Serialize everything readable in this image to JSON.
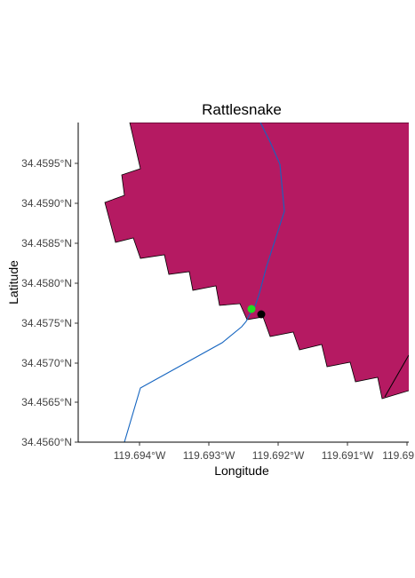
{
  "map": {
    "title": "Rattlesnake",
    "x_axis": {
      "label": "Longitude",
      "ticks": [
        "119.694°W",
        "119.693°W",
        "119.692°W",
        "119.691°W",
        "119.69"
      ]
    },
    "y_axis": {
      "label": "Latitude",
      "ticks": [
        "34.4560°N",
        "34.4565°N",
        "34.4570°N",
        "34.4575°N",
        "34.4580°N",
        "34.4585°N",
        "34.4590°N",
        "34.4595°N"
      ]
    },
    "colors": {
      "polygon_fill": "#b51a62",
      "stream": "#1565c0",
      "point_green": "#22dd22",
      "point_black": "#000000"
    },
    "layers": [
      "watershed-polygon",
      "stream-line",
      "green-point",
      "black-point"
    ]
  }
}
